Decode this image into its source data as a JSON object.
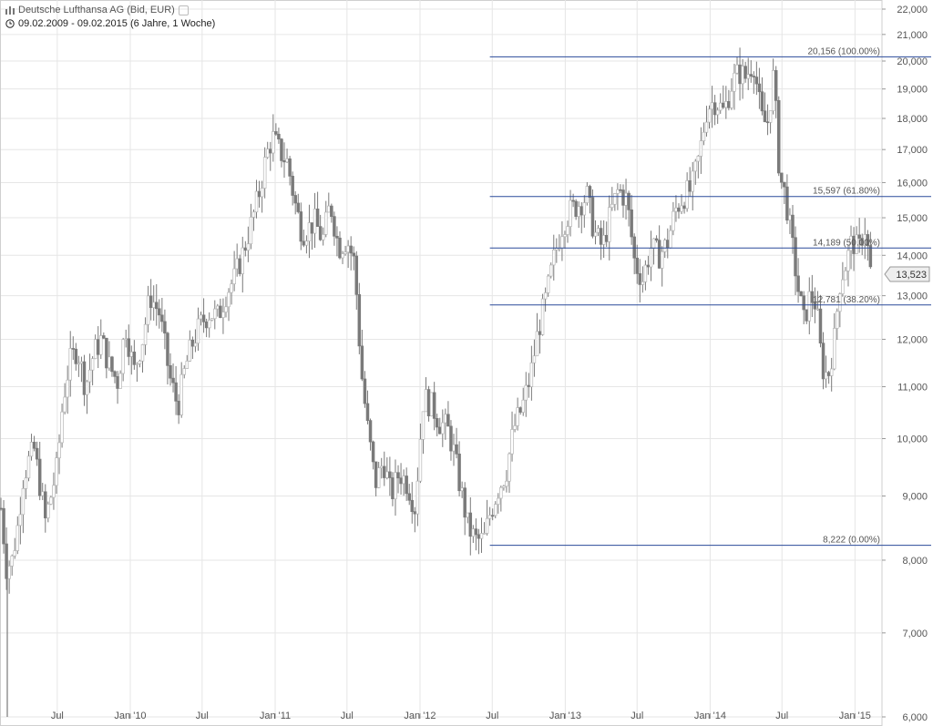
{
  "header": {
    "title": "Deutsche Lufthansa AG (Bid, EUR)",
    "range": "09.02.2009 - 09.02.2015 (6 Jahre, 1 Woche)",
    "title_icon": "chart-bars-icon",
    "range_icon": "clock-icon"
  },
  "colors": {
    "candle": "#7a7a7a",
    "candle_light": "#b5b5b5",
    "fib_line": "#2a4a9a",
    "grid": "#e6e6e6",
    "axis": "#555555"
  },
  "chart_data": {
    "type": "candlestick",
    "title": "Deutsche Lufthansa AG (Bid, EUR)",
    "subtitle": "09.02.2009 - 09.02.2015 (6 Jahre, 1 Woche)",
    "scale": "log",
    "ylim": [
      6.0,
      22.0
    ],
    "y_ticks": [
      "6,000",
      "7,000",
      "8,000",
      "9,000",
      "10,000",
      "11,000",
      "12,000",
      "13,000",
      "14,000",
      "15,000",
      "16,000",
      "17,000",
      "18,000",
      "19,000",
      "20,000",
      "21,000",
      "22,000"
    ],
    "y_tick_values": [
      6,
      7,
      8,
      9,
      10,
      11,
      12,
      13,
      14,
      15,
      16,
      17,
      18,
      19,
      20,
      21,
      22
    ],
    "x_ticks": [
      "Jul",
      "Jan '10",
      "Jul",
      "Jan '11",
      "Jul",
      "Jan '12",
      "Jul",
      "Jan '13",
      "Jul",
      "Jan '14",
      "Jul",
      "Jan '15"
    ],
    "x_tick_dates": [
      "2009-07-01",
      "2010-01-01",
      "2010-07-01",
      "2011-01-01",
      "2011-07-01",
      "2012-01-01",
      "2012-07-01",
      "2013-01-01",
      "2013-07-01",
      "2014-01-01",
      "2014-07-01",
      "2015-01-01"
    ],
    "x_range": [
      "2009-02-09",
      "2015-03-10"
    ],
    "grid": true,
    "last_price": {
      "label": "13,523",
      "value": 13.523
    },
    "fibonacci": {
      "start_date": "2012-06-25",
      "levels": [
        {
          "label": "20,156 (100.00%)",
          "value": 20.156
        },
        {
          "label": "15,597 (61.80%)",
          "value": 15.597
        },
        {
          "label": "14,189 (50.00%)",
          "value": 14.189
        },
        {
          "label": "12,781 (38.20%)",
          "value": 12.781
        },
        {
          "label": "8,222 (0.00%)",
          "value": 8.222
        }
      ]
    },
    "weekly_close_path": {
      "dates": [
        "2009-02-09",
        "2009-02-23",
        "2009-03-09",
        "2009-03-23",
        "2009-04-06",
        "2009-04-20",
        "2009-05-04",
        "2009-05-18",
        "2009-06-01",
        "2009-06-15",
        "2009-07-01",
        "2009-07-15",
        "2009-08-01",
        "2009-08-20",
        "2009-09-10",
        "2009-10-01",
        "2009-10-20",
        "2009-11-10",
        "2009-12-01",
        "2009-12-20",
        "2010-01-10",
        "2010-02-01",
        "2010-02-20",
        "2010-03-15",
        "2010-04-10",
        "2010-05-01",
        "2010-05-20",
        "2010-06-10",
        "2010-07-01",
        "2010-07-20",
        "2010-08-10",
        "2010-09-01",
        "2010-09-20",
        "2010-10-10",
        "2010-11-01",
        "2010-11-20",
        "2010-12-10",
        "2010-12-25",
        "2011-01-10",
        "2011-02-01",
        "2011-02-20",
        "2011-03-10",
        "2011-03-25",
        "2011-04-10",
        "2011-05-01",
        "2011-05-20",
        "2011-06-10",
        "2011-07-01",
        "2011-07-20",
        "2011-08-05",
        "2011-08-20",
        "2011-09-10",
        "2011-10-01",
        "2011-10-20",
        "2011-11-10",
        "2011-12-01",
        "2011-12-20",
        "2012-01-10",
        "2012-02-01",
        "2012-02-20",
        "2012-03-10",
        "2012-03-25",
        "2012-04-10",
        "2012-05-01",
        "2012-05-20",
        "2012-06-10",
        "2012-06-25",
        "2012-07-15",
        "2012-08-05",
        "2012-08-25",
        "2012-09-15",
        "2012-10-05",
        "2012-10-25",
        "2012-11-15",
        "2012-12-05",
        "2012-12-25",
        "2013-01-15",
        "2013-02-05",
        "2013-02-25",
        "2013-03-15",
        "2013-04-05",
        "2013-04-25",
        "2013-05-15",
        "2013-06-05",
        "2013-06-25",
        "2013-07-15",
        "2013-08-05",
        "2013-08-25",
        "2013-09-15",
        "2013-10-05",
        "2013-10-25",
        "2013-11-15",
        "2013-12-05",
        "2013-12-25",
        "2014-01-15",
        "2014-02-05",
        "2014-02-25",
        "2014-03-15",
        "2014-04-01",
        "2014-04-20",
        "2014-05-10",
        "2014-05-25",
        "2014-06-10",
        "2014-06-25",
        "2014-07-10",
        "2014-07-25",
        "2014-08-10",
        "2014-08-25",
        "2014-09-10",
        "2014-09-25",
        "2014-10-10",
        "2014-10-25",
        "2014-11-10",
        "2014-11-25",
        "2014-12-10",
        "2014-12-25",
        "2015-01-10",
        "2015-01-25",
        "2015-02-09"
      ],
      "values": [
        8.8,
        7.9,
        8.0,
        8.5,
        9.3,
        9.6,
        9.8,
        9.2,
        8.6,
        9.0,
        9.5,
        10.7,
        11.5,
        11.8,
        11.0,
        11.7,
        12.0,
        11.4,
        11.1,
        12.3,
        11.3,
        12.0,
        13.0,
        12.6,
        11.2,
        10.6,
        11.4,
        12.0,
        12.4,
        12.6,
        12.5,
        13.1,
        13.4,
        14.0,
        14.8,
        15.6,
        16.8,
        17.4,
        17.0,
        16.6,
        15.4,
        14.6,
        14.7,
        14.9,
        14.4,
        15.4,
        14.2,
        14.4,
        13.8,
        11.4,
        10.3,
        9.2,
        9.6,
        9.0,
        9.4,
        9.2,
        8.8,
        10.8,
        10.6,
        10.3,
        10.2,
        9.8,
        9.2,
        8.5,
        8.3,
        8.3,
        8.7,
        9.1,
        9.4,
        10.2,
        10.6,
        11.2,
        12.2,
        13.0,
        14.0,
        14.8,
        15.2,
        15.4,
        15.6,
        14.6,
        14.2,
        15.1,
        15.8,
        15.5,
        13.8,
        13.4,
        14.2,
        14.0,
        14.3,
        15.2,
        15.6,
        15.8,
        16.8,
        18.4,
        18.6,
        18.2,
        19.2,
        19.6,
        19.4,
        20.0,
        18.0,
        17.8,
        19.5,
        16.2,
        15.6,
        14.4,
        13.2,
        12.4,
        13.0,
        12.8,
        11.4,
        11.2,
        12.0,
        13.4,
        13.8,
        14.4,
        14.1,
        14.8,
        13.6
      ]
    }
  }
}
